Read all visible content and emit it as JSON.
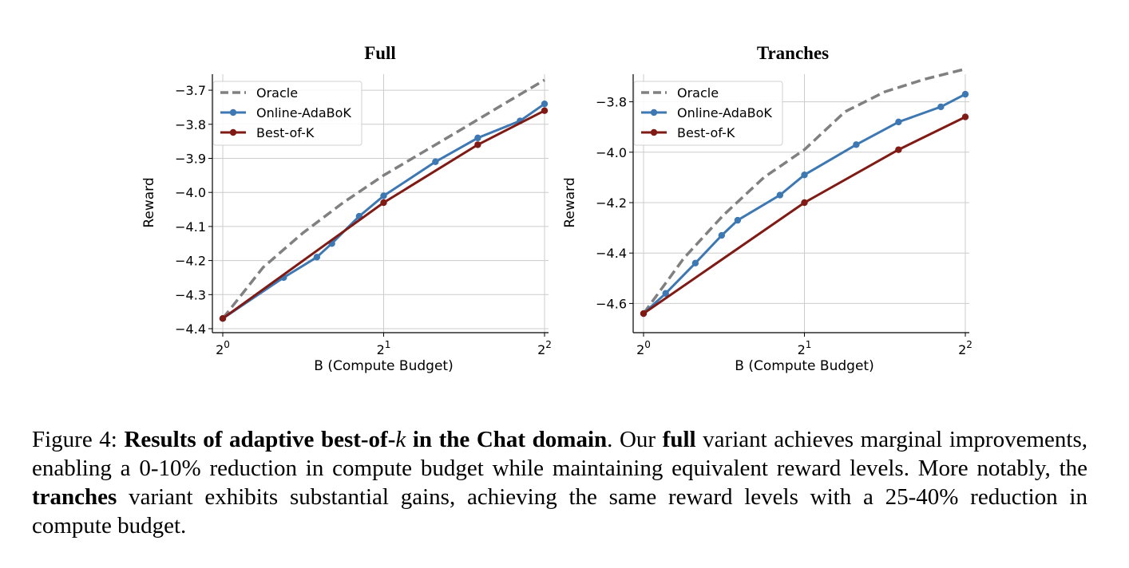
{
  "chart_data": [
    {
      "type": "line",
      "title": "Full",
      "xlabel": "B (Compute Budget)",
      "ylabel": "Reward",
      "x_scale": "log2",
      "xlim": [
        1,
        4
      ],
      "ylim": [
        -4.4,
        -3.66
      ],
      "xticks": [
        1,
        2,
        4
      ],
      "xtick_labels": [
        {
          "base": "2",
          "exp": "0"
        },
        {
          "base": "2",
          "exp": "1"
        },
        {
          "base": "2",
          "exp": "2"
        }
      ],
      "yticks": [
        -3.7,
        -3.8,
        -3.9,
        -4.0,
        -4.1,
        -4.2,
        -4.3,
        -4.4
      ],
      "ytick_labels": [
        "−3.7",
        "−3.8",
        "−3.9",
        "−4.0",
        "−4.1",
        "−4.2",
        "−4.3",
        "−4.4"
      ],
      "grid": true,
      "legend_position": "top-left",
      "series": [
        {
          "name": "Oracle",
          "color": "#808080",
          "style": "dashed",
          "markers": false,
          "x": [
            1.0,
            1.19,
            1.41,
            1.68,
            2.0,
            2.38,
            2.83,
            3.36,
            4.0
          ],
          "y": [
            -4.37,
            -4.22,
            -4.12,
            -4.03,
            -3.95,
            -3.88,
            -3.81,
            -3.74,
            -3.67
          ]
        },
        {
          "name": "Online-AdaBoK",
          "color": "#3d78b3",
          "style": "solid",
          "markers": true,
          "x": [
            1.0,
            1.3,
            1.5,
            1.6,
            1.8,
            2.0,
            2.5,
            3.0,
            3.6,
            4.0
          ],
          "y": [
            -4.37,
            -4.25,
            -4.19,
            -4.15,
            -4.07,
            -4.01,
            -3.91,
            -3.84,
            -3.79,
            -3.74
          ]
        },
        {
          "name": "Best-of-K",
          "color": "#7f1a14",
          "style": "solid",
          "markers": true,
          "x": [
            1.0,
            2.0,
            3.0,
            4.0
          ],
          "y": [
            -4.37,
            -4.03,
            -3.86,
            -3.76
          ]
        }
      ]
    },
    {
      "type": "line",
      "title": "Tranches",
      "xlabel": "B (Compute Budget)",
      "ylabel": "Reward",
      "x_scale": "log2",
      "xlim": [
        1,
        4
      ],
      "ylim": [
        -4.7,
        -3.7
      ],
      "xticks": [
        1,
        2,
        4
      ],
      "xtick_labels": [
        {
          "base": "2",
          "exp": "0"
        },
        {
          "base": "2",
          "exp": "1"
        },
        {
          "base": "2",
          "exp": "2"
        }
      ],
      "yticks": [
        -3.8,
        -4.0,
        -4.2,
        -4.4,
        -4.6
      ],
      "ytick_labels": [
        "−3.8",
        "−4.0",
        "−4.2",
        "−4.4",
        "−4.6"
      ],
      "grid": true,
      "legend_position": "top-left",
      "series": [
        {
          "name": "Oracle",
          "color": "#808080",
          "style": "dashed",
          "markers": false,
          "x": [
            1.0,
            1.19,
            1.41,
            1.68,
            2.0,
            2.38,
            2.83,
            3.36,
            4.0
          ],
          "y": [
            -4.64,
            -4.42,
            -4.25,
            -4.1,
            -3.99,
            -3.84,
            -3.76,
            -3.71,
            -3.67
          ]
        },
        {
          "name": "Online-AdaBoK",
          "color": "#3d78b3",
          "style": "solid",
          "markers": true,
          "x": [
            1.0,
            1.1,
            1.25,
            1.4,
            1.5,
            1.8,
            2.0,
            2.5,
            3.0,
            3.6,
            4.0
          ],
          "y": [
            -4.64,
            -4.56,
            -4.44,
            -4.33,
            -4.27,
            -4.17,
            -4.09,
            -3.97,
            -3.88,
            -3.82,
            -3.77
          ]
        },
        {
          "name": "Best-of-K",
          "color": "#7f1a14",
          "style": "solid",
          "markers": true,
          "x": [
            1.0,
            2.0,
            3.0,
            4.0
          ],
          "y": [
            -4.64,
            -4.2,
            -3.99,
            -3.86
          ]
        }
      ]
    }
  ],
  "caption": {
    "label": "Figure 4:",
    "bold_prefix": "Results of adaptive best-of-",
    "bold_var": "k",
    "bold_suffix": " in the Chat domain",
    "text_1": ". Our ",
    "bold_full": "full",
    "text_2": " variant achieves marginal improvements, enabling a 0-10% reduction in compute budget while maintaining equivalent reward levels. More notably, the ",
    "bold_tranches": "tranches",
    "text_3": " variant exhibits substantial gains, achieving the same reward levels with a 25-40% reduction in compute budget."
  }
}
